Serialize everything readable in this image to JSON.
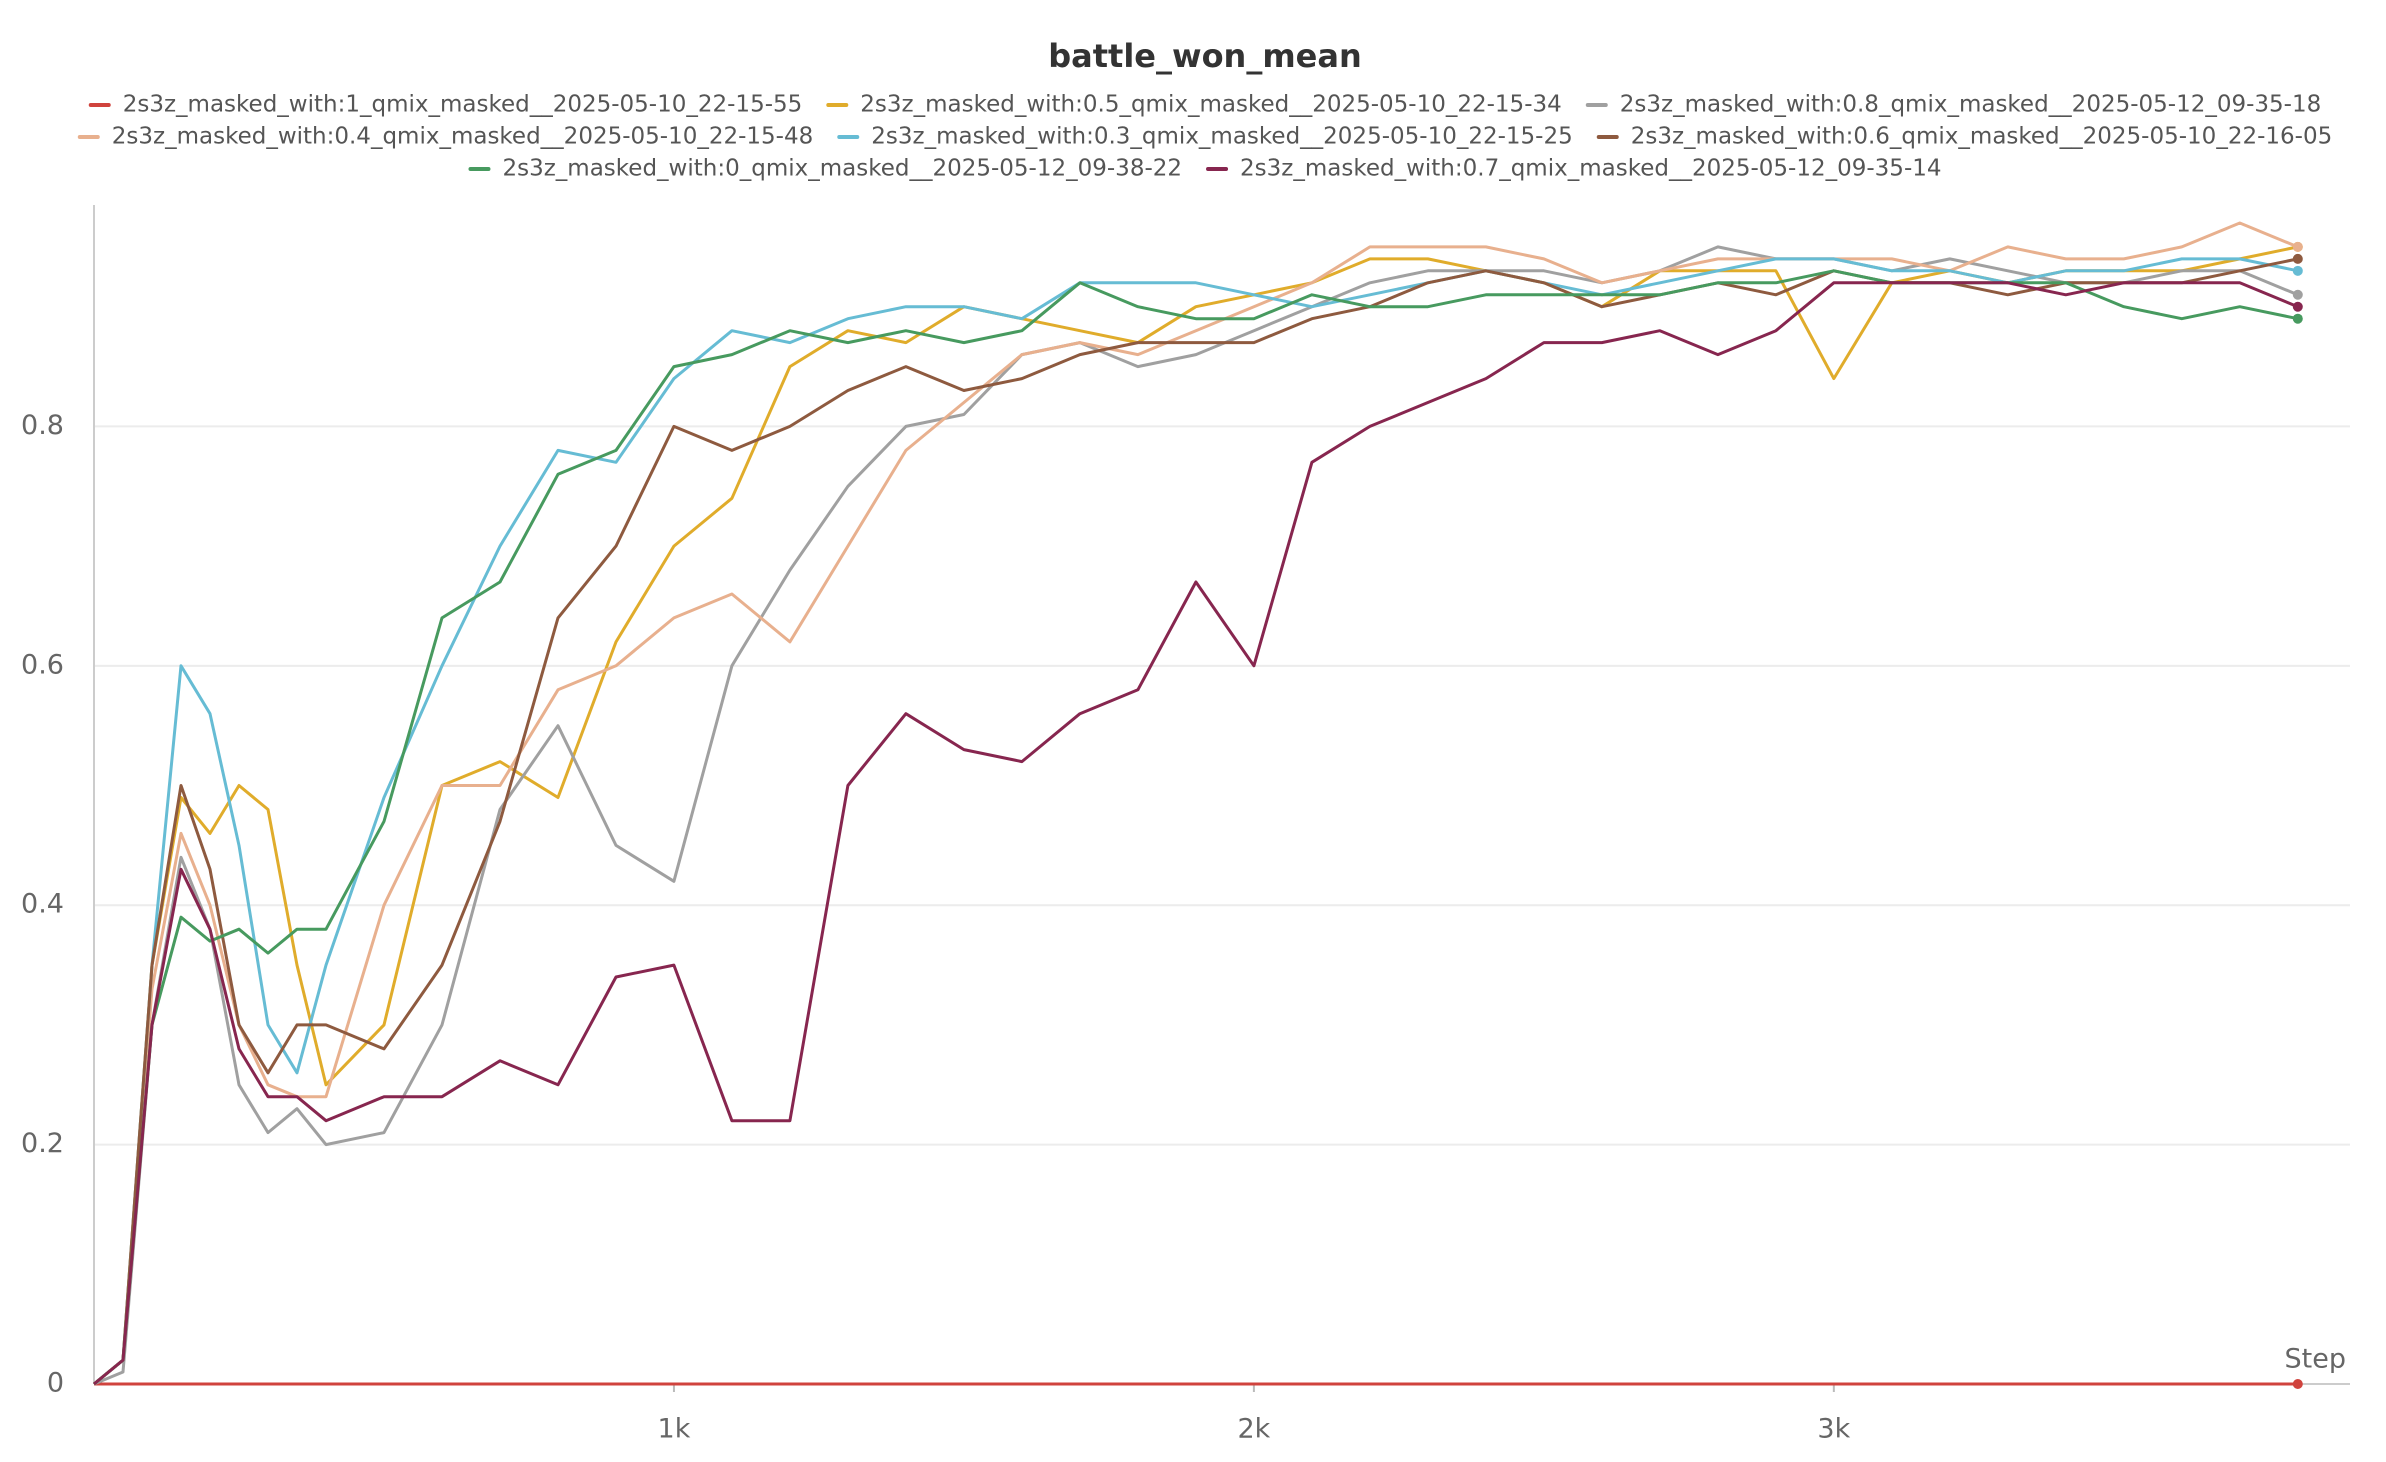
{
  "chart_data": {
    "type": "line",
    "title": "battle_won_mean",
    "x_label": "Step",
    "x": [
      0,
      50,
      100,
      150,
      200,
      250,
      300,
      350,
      400,
      500,
      600,
      700,
      800,
      900,
      1000,
      1100,
      1200,
      1300,
      1400,
      1500,
      1600,
      1700,
      1800,
      1900,
      2000,
      2100,
      2200,
      2300,
      2400,
      2500,
      2600,
      2700,
      2800,
      2900,
      3000,
      3100,
      3200,
      3300,
      3400,
      3500,
      3600,
      3700,
      3800
    ],
    "xlim": [
      0,
      3890
    ],
    "ylim": [
      0,
      0.985
    ],
    "xticks": [
      {
        "value": 1000,
        "label": "1k"
      },
      {
        "value": 2000,
        "label": "2k"
      },
      {
        "value": 3000,
        "label": "3k"
      }
    ],
    "yticks": [
      0,
      0.2,
      0.4,
      0.6,
      0.8
    ],
    "grid": true,
    "series": [
      {
        "name": "2s3z_masked_with:1_qmix_masked__2025-05-10_22-15-55",
        "color": "#d0433d",
        "values": [
          0,
          0,
          0,
          0,
          0,
          0,
          0,
          0,
          0,
          0,
          0,
          0,
          0,
          0,
          0,
          0,
          0,
          0,
          0,
          0,
          0,
          0,
          0,
          0,
          0,
          0,
          0,
          0,
          0,
          0,
          0,
          0,
          0,
          0,
          0,
          0,
          0,
          0,
          0,
          0,
          0,
          0,
          0
        ]
      },
      {
        "name": "2s3z_masked_with:0.5_qmix_masked__2025-05-10_22-15-34",
        "color": "#e0ac2b",
        "values": [
          0,
          0.02,
          0.35,
          0.49,
          0.46,
          0.5,
          0.48,
          0.35,
          0.25,
          0.3,
          0.5,
          0.52,
          0.49,
          0.62,
          0.7,
          0.74,
          0.85,
          0.88,
          0.87,
          0.9,
          0.89,
          0.88,
          0.87,
          0.9,
          0.91,
          0.92,
          0.94,
          0.94,
          0.93,
          0.92,
          0.9,
          0.93,
          0.93,
          0.93,
          0.84,
          0.92,
          0.93,
          0.92,
          0.93,
          0.93,
          0.93,
          0.94,
          0.95
        ]
      },
      {
        "name": "2s3z_masked_with:0.8_qmix_masked__2025-05-12_09-35-18",
        "color": "#a0a0a0",
        "values": [
          0,
          0.01,
          0.3,
          0.44,
          0.38,
          0.25,
          0.21,
          0.23,
          0.2,
          0.21,
          0.3,
          0.48,
          0.55,
          0.45,
          0.42,
          0.6,
          0.68,
          0.75,
          0.8,
          0.81,
          0.86,
          0.87,
          0.85,
          0.86,
          0.88,
          0.9,
          0.92,
          0.93,
          0.93,
          0.93,
          0.92,
          0.93,
          0.95,
          0.94,
          0.94,
          0.93,
          0.94,
          0.93,
          0.92,
          0.92,
          0.93,
          0.93,
          0.91
        ]
      },
      {
        "name": "2s3z_masked_with:0.4_qmix_masked__2025-05-10_22-15-48",
        "color": "#e8b08e",
        "values": [
          0,
          0.02,
          0.33,
          0.46,
          0.4,
          0.3,
          0.25,
          0.24,
          0.24,
          0.4,
          0.5,
          0.5,
          0.58,
          0.6,
          0.64,
          0.66,
          0.62,
          0.7,
          0.78,
          0.82,
          0.86,
          0.87,
          0.86,
          0.88,
          0.9,
          0.92,
          0.95,
          0.95,
          0.95,
          0.94,
          0.92,
          0.93,
          0.94,
          0.94,
          0.94,
          0.94,
          0.93,
          0.95,
          0.94,
          0.94,
          0.95,
          0.97,
          0.95
        ]
      },
      {
        "name": "2s3z_masked_with:0.3_qmix_masked__2025-05-10_22-15-25",
        "color": "#66bcd4",
        "values": [
          0,
          0.02,
          0.35,
          0.6,
          0.56,
          0.45,
          0.3,
          0.26,
          0.35,
          0.49,
          0.6,
          0.7,
          0.78,
          0.77,
          0.84,
          0.88,
          0.87,
          0.89,
          0.9,
          0.9,
          0.89,
          0.92,
          0.92,
          0.92,
          0.91,
          0.9,
          0.91,
          0.92,
          0.93,
          0.92,
          0.91,
          0.92,
          0.93,
          0.94,
          0.94,
          0.93,
          0.93,
          0.92,
          0.93,
          0.93,
          0.94,
          0.94,
          0.93
        ]
      },
      {
        "name": "2s3z_masked_with:0.6_qmix_masked__2025-05-10_22-16-05",
        "color": "#8e5a3f",
        "values": [
          0,
          0.02,
          0.35,
          0.5,
          0.43,
          0.3,
          0.26,
          0.3,
          0.3,
          0.28,
          0.35,
          0.47,
          0.64,
          0.7,
          0.8,
          0.78,
          0.8,
          0.83,
          0.85,
          0.83,
          0.84,
          0.86,
          0.87,
          0.87,
          0.87,
          0.89,
          0.9,
          0.92,
          0.93,
          0.92,
          0.9,
          0.91,
          0.92,
          0.91,
          0.93,
          0.92,
          0.92,
          0.91,
          0.92,
          0.92,
          0.92,
          0.93,
          0.94
        ]
      },
      {
        "name": "2s3z_masked_with:0_qmix_masked__2025-05-12_09-38-22",
        "color": "#479a5f",
        "values": [
          0,
          0.02,
          0.3,
          0.39,
          0.37,
          0.38,
          0.36,
          0.38,
          0.38,
          0.47,
          0.64,
          0.67,
          0.76,
          0.78,
          0.85,
          0.86,
          0.88,
          0.87,
          0.88,
          0.87,
          0.88,
          0.92,
          0.9,
          0.89,
          0.89,
          0.91,
          0.9,
          0.9,
          0.91,
          0.91,
          0.91,
          0.91,
          0.92,
          0.92,
          0.93,
          0.92,
          0.92,
          0.92,
          0.92,
          0.9,
          0.89,
          0.9,
          0.89
        ]
      },
      {
        "name": "2s3z_masked_with:0.7_qmix_masked__2025-05-12_09-35-14",
        "color": "#87264f",
        "values": [
          0,
          0.02,
          0.3,
          0.43,
          0.38,
          0.28,
          0.24,
          0.24,
          0.22,
          0.24,
          0.24,
          0.27,
          0.25,
          0.34,
          0.35,
          0.22,
          0.22,
          0.5,
          0.56,
          0.53,
          0.52,
          0.56,
          0.58,
          0.67,
          0.6,
          0.77,
          0.8,
          0.82,
          0.84,
          0.87,
          0.87,
          0.88,
          0.86,
          0.88,
          0.92,
          0.92,
          0.92,
          0.92,
          0.91,
          0.92,
          0.92,
          0.92,
          0.9
        ]
      }
    ]
  }
}
